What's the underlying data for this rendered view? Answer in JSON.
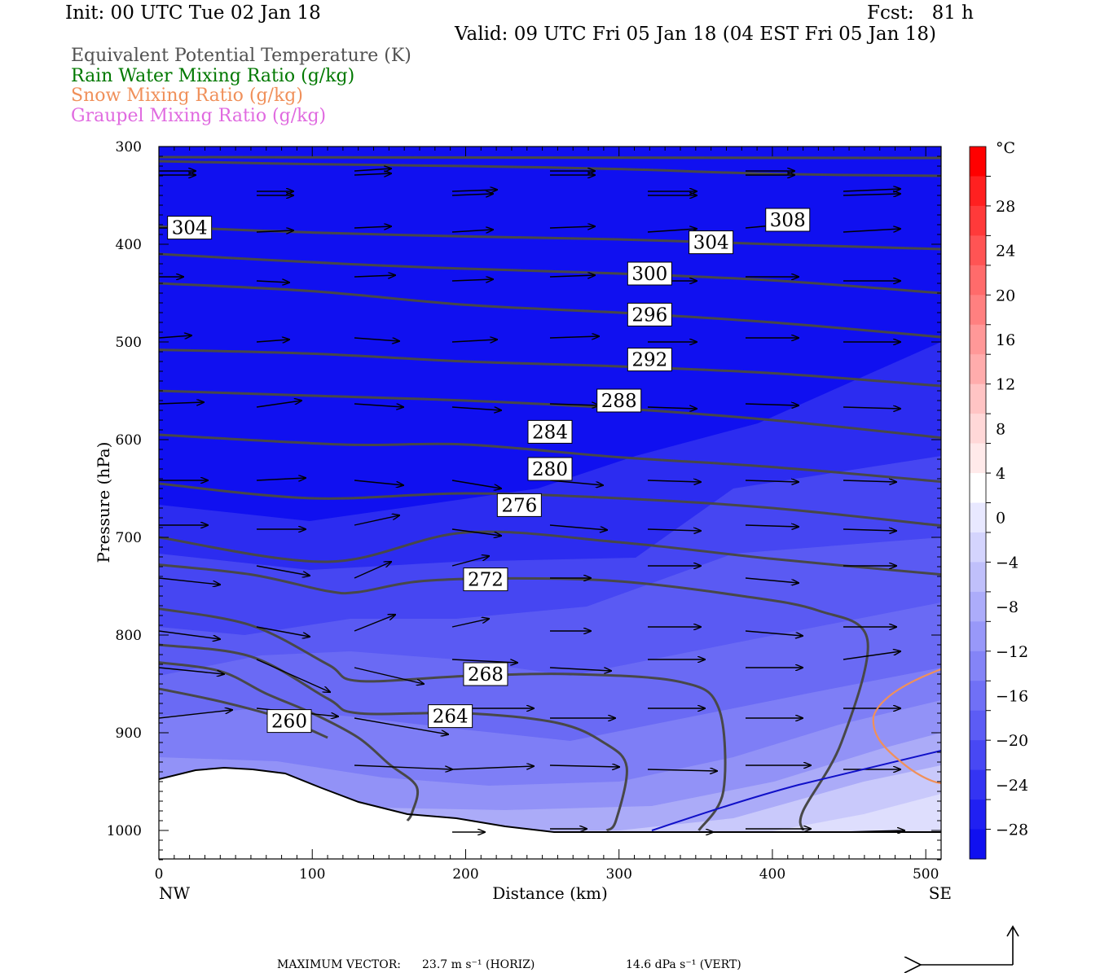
{
  "header": {
    "init": "Init: 00 UTC Tue 02 Jan 18",
    "fcst": "Fcst:   81 h",
    "valid": "Valid: 09 UTC Fri 05 Jan 18 (04 EST Fri 05 Jan 18)"
  },
  "legend": [
    {
      "text": "Equivalent Potential Temperature (K)",
      "color": "#505050"
    },
    {
      "text": "Rain Water Mixing Ratio (g/kg)",
      "color": "#007800"
    },
    {
      "text": "Snow Mixing Ratio (g/kg)",
      "color": "#f0905a"
    },
    {
      "text": "Graupel Mixing Ratio (g/kg)",
      "color": "#e06ae0"
    }
  ],
  "chart_data": {
    "type": "cross-section contour",
    "xlabel": "Distance (km)",
    "ylabel": "Pressure (hPa)",
    "x_ticks": [
      "0",
      "100",
      "200",
      "300",
      "400",
      "500"
    ],
    "y_ticks": [
      "300",
      "400",
      "500",
      "600",
      "700",
      "800",
      "900",
      "1000"
    ],
    "xlim": [
      0,
      510
    ],
    "ylim": [
      1030,
      300
    ],
    "x_end_labels": {
      "left": "NW",
      "right": "SE"
    },
    "colorbar": {
      "unit": "°C",
      "labels": [
        "28",
        "24",
        "20",
        "16",
        "12",
        "8",
        "4",
        "0",
        "−4",
        "−8",
        "−12",
        "−16",
        "−20",
        "−24",
        "−28"
      ]
    },
    "theta_e_contours": [
      {
        "label": "308",
        "label_at": [
          410,
          375
        ],
        "points": [
          [
            0,
            315
          ],
          [
            100,
            318
          ],
          [
            200,
            320
          ],
          [
            300,
            323
          ],
          [
            400,
            328
          ],
          [
            510,
            330
          ]
        ]
      },
      {
        "label": "304",
        "label_at": [
          20,
          383
        ],
        "points": [
          [
            0,
            382
          ],
          [
            100,
            388
          ],
          [
            200,
            392
          ],
          [
            300,
            395
          ],
          [
            400,
            400
          ],
          [
            510,
            405
          ]
        ]
      },
      {
        "label": "304",
        "label_at": [
          360,
          398
        ],
        "points": []
      },
      {
        "label": "300",
        "label_at": [
          320,
          430
        ],
        "points": [
          [
            0,
            410
          ],
          [
            120,
            420
          ],
          [
            200,
            425
          ],
          [
            300,
            430
          ],
          [
            400,
            437
          ],
          [
            510,
            450
          ]
        ]
      },
      {
        "label": "296",
        "label_at": [
          320,
          472
        ],
        "points": [
          [
            0,
            440
          ],
          [
            100,
            448
          ],
          [
            200,
            462
          ],
          [
            300,
            470
          ],
          [
            400,
            480
          ],
          [
            510,
            495
          ]
        ]
      },
      {
        "label": "292",
        "label_at": [
          320,
          518
        ],
        "points": [
          [
            0,
            508
          ],
          [
            100,
            512
          ],
          [
            200,
            520
          ],
          [
            300,
            525
          ],
          [
            400,
            532
          ],
          [
            510,
            545
          ]
        ]
      },
      {
        "label": "288",
        "label_at": [
          300,
          560
        ],
        "points": [
          [
            0,
            550
          ],
          [
            100,
            555
          ],
          [
            200,
            560
          ],
          [
            300,
            568
          ],
          [
            400,
            580
          ],
          [
            510,
            598
          ]
        ]
      },
      {
        "label": "284",
        "label_at": [
          255,
          592
        ],
        "points": [
          [
            0,
            595
          ],
          [
            120,
            605
          ],
          [
            200,
            605
          ],
          [
            300,
            618
          ],
          [
            400,
            628
          ],
          [
            510,
            643
          ]
        ]
      },
      {
        "label": "280",
        "label_at": [
          255,
          630
        ],
        "points": [
          [
            0,
            645
          ],
          [
            100,
            660
          ],
          [
            200,
            655
          ],
          [
            300,
            660
          ],
          [
            400,
            670
          ],
          [
            510,
            688
          ]
        ]
      },
      {
        "label": "276",
        "label_at": [
          235,
          667
        ],
        "points": [
          [
            0,
            700
          ],
          [
            110,
            725
          ],
          [
            200,
            695
          ],
          [
            300,
            705
          ],
          [
            400,
            722
          ],
          [
            510,
            738
          ]
        ]
      },
      {
        "label": "272",
        "label_at": [
          213,
          743
        ],
        "points": [
          [
            0,
            728
          ],
          [
            60,
            738
          ],
          [
            110,
            755
          ],
          [
            130,
            756
          ],
          [
            170,
            745
          ],
          [
            230,
            742
          ],
          [
            300,
            745
          ],
          [
            380,
            760
          ],
          [
            430,
            775
          ],
          [
            462,
            805
          ],
          [
            445,
            910
          ],
          [
            420,
            980
          ],
          [
            420,
            1000
          ]
        ]
      },
      {
        "label": "268",
        "label_at": [
          213,
          840
        ],
        "points": [
          [
            0,
            773
          ],
          [
            60,
            790
          ],
          [
            110,
            830
          ],
          [
            130,
            847
          ],
          [
            200,
            842
          ],
          [
            270,
            840
          ],
          [
            340,
            848
          ],
          [
            365,
            875
          ],
          [
            368,
            960
          ],
          [
            352,
            1000
          ]
        ]
      },
      {
        "label": "264",
        "label_at": [
          190,
          883
        ],
        "points": [
          [
            0,
            810
          ],
          [
            60,
            822
          ],
          [
            110,
            865
          ],
          [
            130,
            880
          ],
          [
            200,
            880
          ],
          [
            260,
            890
          ],
          [
            290,
            910
          ],
          [
            305,
            935
          ],
          [
            298,
            990
          ],
          [
            292,
            1000
          ]
        ]
      },
      {
        "label": "260",
        "label_at": [
          85,
          888
        ],
        "points": [
          [
            0,
            828
          ],
          [
            40,
            837
          ],
          [
            70,
            860
          ],
          [
            100,
            880
          ],
          [
            130,
            905
          ],
          [
            150,
            932
          ],
          [
            168,
            955
          ],
          [
            165,
            982
          ],
          [
            162,
            990
          ]
        ]
      },
      {
        "label": "",
        "label_at": null,
        "points": [
          [
            0,
            855
          ],
          [
            40,
            868
          ],
          [
            80,
            885
          ],
          [
            110,
            905
          ]
        ]
      }
    ]
  },
  "footer": {
    "max_label": "MAXIMUM VECTOR:",
    "horiz": "23.7 m s⁻¹ (HORIZ)",
    "vert": "14.6 dPa s⁻¹ (VERT)"
  }
}
